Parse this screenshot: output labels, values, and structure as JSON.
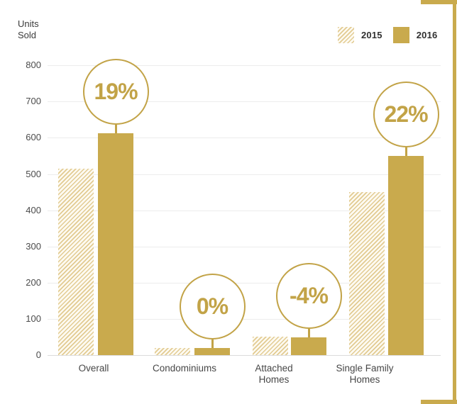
{
  "chart_data": {
    "type": "bar",
    "title": "",
    "ylabel": "Units Sold",
    "ylabel_lines": [
      "Units",
      "Sold"
    ],
    "xlabel": "",
    "ylim": [
      0,
      800
    ],
    "ytick_interval": 100,
    "yticks": [
      800,
      700,
      600,
      500,
      400,
      300,
      200,
      100,
      0
    ],
    "grid": "horizontal",
    "legend_position": "top-right",
    "series_names": [
      "2015",
      "2016"
    ],
    "series_styles": {
      "2015": "hatched",
      "2016": "solid"
    },
    "categories": [
      {
        "label": "Overall",
        "label_lines": [
          "Overall"
        ],
        "values": {
          "2015": 515,
          "2016": 613
        },
        "change": "19%"
      },
      {
        "label": "Condominiums",
        "label_lines": [
          "Condominiums"
        ],
        "values": {
          "2015": 20,
          "2016": 20
        },
        "change": "0%"
      },
      {
        "label": "Attached Homes",
        "label_lines": [
          "Attached",
          "Homes"
        ],
        "values": {
          "2015": 50,
          "2016": 48
        },
        "change": "-4%"
      },
      {
        "label": "Single Family Homes",
        "label_lines": [
          "Single Family",
          "Homes"
        ],
        "values": {
          "2015": 450,
          "2016": 549
        },
        "change": "22%"
      }
    ]
  },
  "colors": {
    "bar_solid": "#C9AA4D",
    "hatch_stripe": "#E2CB92",
    "hatch_background": "#FDFAF1",
    "accent_gold": "#C2A347",
    "grid_line": "#ECECEC",
    "axis_baseline": "#DCDCDC",
    "text_dark": "#3B3B3B",
    "text_gray": "#4A4A4A",
    "corner_bracket": "#C9AA4D"
  }
}
